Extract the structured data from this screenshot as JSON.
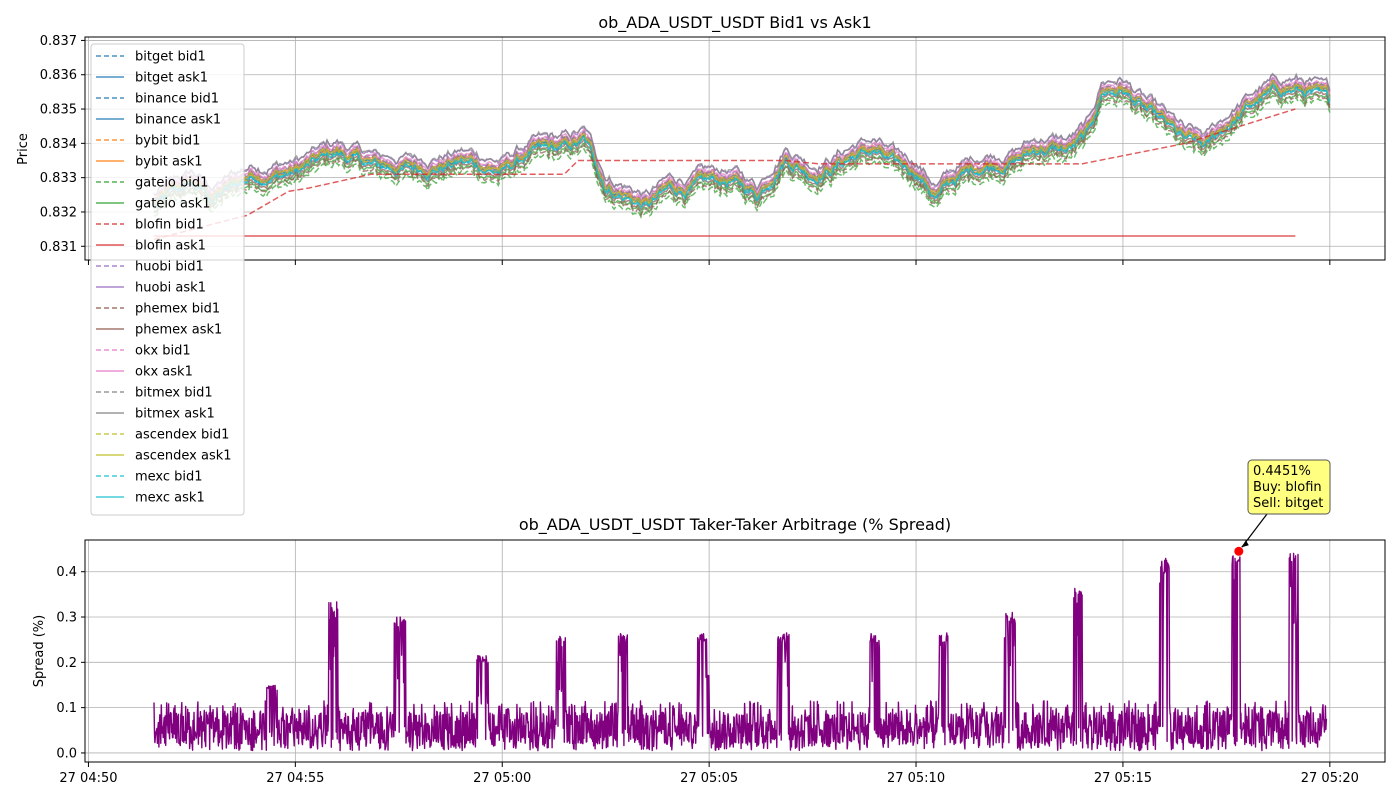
{
  "colors": {
    "bitget": "#1f77b4",
    "binance": "#1f77b4",
    "bybit": "#ff7f0e",
    "gateio": "#2ca02c",
    "blofin": "#d62728",
    "huobi": "#9467bd",
    "phemex": "#8c564b",
    "okx": "#e377c2",
    "bitmex": "#7f7f7f",
    "ascendex": "#bcbd22",
    "mexc": "#17becf",
    "spread": "#800080",
    "grid": "#b0b0b0",
    "annotation_box": "#ffff80",
    "marker": "#ff0000"
  },
  "chart_data": [
    {
      "type": "line",
      "title": "ob_ADA_USDT_USDT Bid1 vs Ask1",
      "ylabel": "Price",
      "xlabel": "",
      "ylim": [
        0.8306,
        0.8371
      ],
      "xlim": [
        "04:49:55",
        "05:21:20"
      ],
      "y_ticks": [
        "0.831",
        "0.832",
        "0.833",
        "0.834",
        "0.835",
        "0.836",
        "0.837"
      ],
      "grid": true,
      "legend_position": "upper-left",
      "legend": [
        "bitget bid1",
        "bitget ask1",
        "binance bid1",
        "binance ask1",
        "bybit bid1",
        "bybit ask1",
        "gateio bid1",
        "gateio ask1",
        "blofin bid1",
        "blofin ask1",
        "huobi bid1",
        "huobi ask1",
        "phemex bid1",
        "phemex ask1",
        "okx bid1",
        "okx ask1",
        "bitmex bid1",
        "bitmex ask1",
        "ascendex bid1",
        "ascendex ask1",
        "mexc bid1",
        "mexc ask1"
      ],
      "mid_price_profile": {
        "times": [
          "04:51:35",
          "04:52:30",
          "04:53:00",
          "04:54:00",
          "04:55:00",
          "04:56:00",
          "04:57:00",
          "04:58:00",
          "04:59:00",
          "05:00:00",
          "05:00:40",
          "05:01:30",
          "05:02:00",
          "05:02:30",
          "05:03:00",
          "05:03:30",
          "05:04:00",
          "05:05:00",
          "05:05:30",
          "05:06:10",
          "05:06:50",
          "05:07:30",
          "05:08:00",
          "05:08:30",
          "05:09:00",
          "05:09:30",
          "05:10:00",
          "05:10:30",
          "05:11:00",
          "05:11:40",
          "05:12:30",
          "05:13:00",
          "05:13:40",
          "05:14:10",
          "05:14:30",
          "05:15:00",
          "05:15:30",
          "05:16:00",
          "05:16:30",
          "05:17:00",
          "05:17:40",
          "05:18:20",
          "05:19:00",
          "05:19:30",
          "05:20:00"
        ],
        "values": [
          0.8322,
          0.8328,
          0.8324,
          0.8331,
          0.8332,
          0.8337,
          0.8333,
          0.8333,
          0.8335,
          0.8332,
          0.8337,
          0.8338,
          0.834,
          0.8328,
          0.8325,
          0.8322,
          0.8326,
          0.8328,
          0.8329,
          0.8325,
          0.8337,
          0.8332,
          0.8334,
          0.8337,
          0.8338,
          0.8333,
          0.8332,
          0.8325,
          0.833,
          0.8334,
          0.8336,
          0.8339,
          0.8338,
          0.8342,
          0.8355,
          0.8356,
          0.835,
          0.8345,
          0.834,
          0.8338,
          0.8347,
          0.8353,
          0.8356,
          0.8355,
          0.8351
        ]
      },
      "blofin_bid1_steps": {
        "times": [
          "04:51:35",
          "04:53:30",
          "04:53:50",
          "04:54:50",
          "04:55:20",
          "04:56:50",
          "05:01:30",
          "05:01:50",
          "05:06:50",
          "05:07:40",
          "05:14:00",
          "05:16:30",
          "05:19:10"
        ],
        "values": [
          0.8312,
          0.8318,
          0.8319,
          0.8326,
          0.8327,
          0.8331,
          0.8331,
          0.8335,
          0.8335,
          0.8334,
          0.8334,
          0.834,
          0.835
        ]
      },
      "blofin_ask1": {
        "x": [
          "04:51:35",
          "05:19:10"
        ],
        "y": [
          0.8313,
          0.8313
        ]
      }
    },
    {
      "type": "line",
      "title": "ob_ADA_USDT_USDT Taker-Taker Arbitrage (% Spread)",
      "ylabel": "Spread (%)",
      "xlabel": "",
      "ylim": [
        -0.02,
        0.47
      ],
      "xlim": [
        "04:49:55",
        "05:21:20"
      ],
      "y_ticks": [
        "0.0",
        "0.1",
        "0.2",
        "0.3",
        "0.4"
      ],
      "x_ticks": [
        "27 04:50",
        "27 04:55",
        "27 05:00",
        "27 05:05",
        "27 05:10",
        "27 05:15",
        "27 05:20"
      ],
      "grid": true,
      "baseline": {
        "min": 0.0,
        "max": 0.11,
        "typical": 0.05
      },
      "spikes": [
        {
          "start": "04:54:20",
          "end": "04:54:32",
          "peak": 0.15
        },
        {
          "start": "04:55:50",
          "end": "04:56:00",
          "peak": 0.335
        },
        {
          "start": "04:57:25",
          "end": "04:57:38",
          "peak": 0.3
        },
        {
          "start": "04:59:25",
          "end": "04:59:38",
          "peak": 0.215
        },
        {
          "start": "05:01:20",
          "end": "05:01:30",
          "peak": 0.265
        },
        {
          "start": "05:02:50",
          "end": "05:03:00",
          "peak": 0.265
        },
        {
          "start": "05:04:45",
          "end": "05:04:58",
          "peak": 0.265
        },
        {
          "start": "05:06:40",
          "end": "05:06:55",
          "peak": 0.265
        },
        {
          "start": "05:08:55",
          "end": "05:09:05",
          "peak": 0.265
        },
        {
          "start": "05:10:35",
          "end": "05:10:45",
          "peak": 0.265
        },
        {
          "start": "05:12:10",
          "end": "05:12:22",
          "peak": 0.31
        },
        {
          "start": "05:13:50",
          "end": "05:14:00",
          "peak": 0.37
        },
        {
          "start": "05:15:55",
          "end": "05:16:05",
          "peak": 0.43
        },
        {
          "start": "05:17:40",
          "end": "05:17:48",
          "peak": 0.4451
        },
        {
          "start": "05:19:03",
          "end": "05:19:12",
          "peak": 0.445
        }
      ],
      "max_point": {
        "x": "05:17:48",
        "y": 0.4451
      },
      "annotation": [
        "0.4451%",
        "Buy: blofin",
        "Sell: bitget"
      ]
    }
  ]
}
